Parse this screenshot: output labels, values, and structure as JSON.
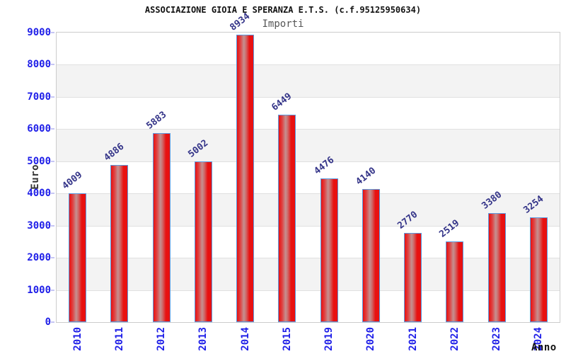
{
  "chart_data": {
    "type": "bar",
    "title": "ASSOCIAZIONE GIOIA E SPERANZA E.T.S. (c.f.95125950634)",
    "subtitle": "Importi",
    "xlabel": "Anno",
    "ylabel": "Euro",
    "categories": [
      "2010",
      "2011",
      "2012",
      "2013",
      "2014",
      "2015",
      "2019",
      "2020",
      "2021",
      "2022",
      "2023",
      "2024"
    ],
    "values": [
      4009,
      4886,
      5883,
      5002,
      8934,
      6449,
      4476,
      4140,
      2770,
      2519,
      3380,
      3254
    ],
    "ylim": [
      0,
      9000
    ],
    "ytick_step": 1000,
    "grid": "horizontal-bands-alternating",
    "legend": "none",
    "value_labels_rotated": true,
    "colors": {
      "bar_fill_edge": "#e81111",
      "bar_fill_center": "#c59090",
      "bar_border": "#5a9ae0",
      "axis_tick_label": "#2020e8",
      "value_label": "#333388",
      "band_alt": "#f3f3f3",
      "gridline": "#e0e0e0",
      "plot_border": "#cccccc",
      "title": "#111111",
      "subtitle": "#555555",
      "axis_title": "#333333"
    }
  }
}
